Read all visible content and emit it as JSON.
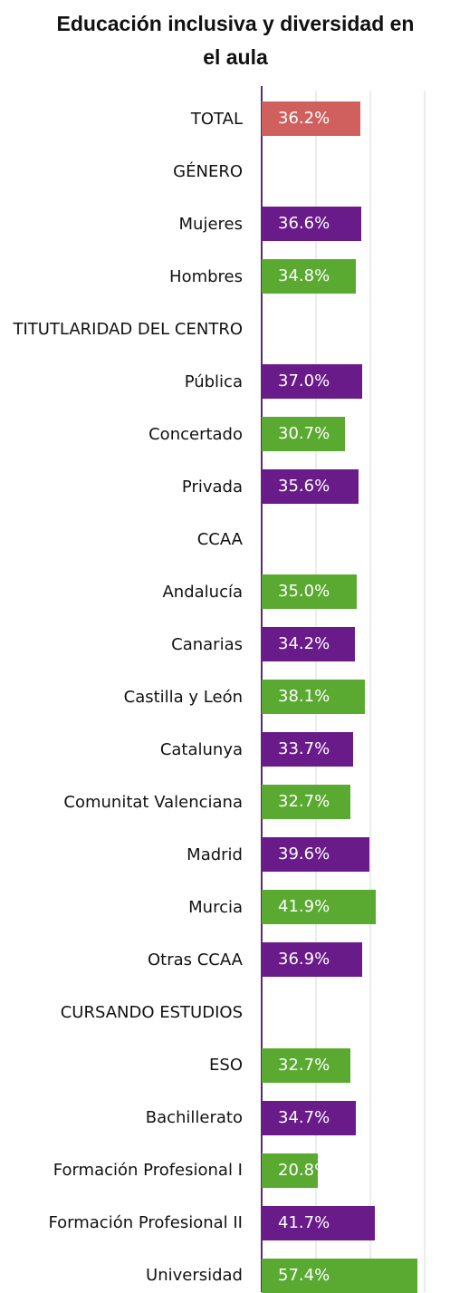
{
  "chart_data": {
    "type": "barh",
    "title": "Educación inclusiva y diversidad en el aula",
    "categories": [
      "TOTAL",
      "GÉNERO",
      "Mujeres",
      "Hombres",
      "TITUTLARIDAD DEL CENTRO",
      "Pública",
      "Concertado",
      "Privada",
      "CCAA",
      "Andalucía",
      "Canarias",
      "Castilla y León",
      "Catalunya",
      "Comunitat Valenciana",
      "Madrid",
      "Murcia",
      "Otras CCAA",
      "CURSANDO ESTUDIOS",
      "ESO",
      "Bachillerato",
      "Formación Profesional I",
      "Formación Profesional II",
      "Universidad"
    ],
    "values": [
      36.2,
      null,
      36.6,
      34.8,
      null,
      37.0,
      30.7,
      35.6,
      null,
      35.0,
      34.2,
      38.1,
      33.7,
      32.7,
      39.6,
      41.9,
      36.9,
      null,
      32.7,
      34.7,
      20.8,
      41.7,
      57.4
    ],
    "value_labels": [
      "36.2%",
      null,
      "36.6%",
      "34.8%",
      null,
      "37.0%",
      "30.7%",
      "35.6%",
      null,
      "35.0%",
      "34.2%",
      "38.1%",
      "33.7%",
      "32.7%",
      "39.6%",
      "41.9%",
      "36.9%",
      null,
      "32.7%",
      "34.7%",
      "20.8%",
      "41.7%",
      "57.4%"
    ],
    "colors": [
      "#d0605e",
      null,
      "#6a1b8a",
      "#5aaa32",
      null,
      "#6a1b8a",
      "#5aaa32",
      "#6a1b8a",
      null,
      "#5aaa32",
      "#6a1b8a",
      "#5aaa32",
      "#6a1b8a",
      "#5aaa32",
      "#6a1b8a",
      "#5aaa32",
      "#6a1b8a",
      null,
      "#5aaa32",
      "#6a1b8a",
      "#5aaa32",
      "#6a1b8a",
      "#5aaa32"
    ],
    "xlim": [
      0,
      60
    ],
    "xticks": [
      0,
      20,
      40,
      60
    ],
    "grid": true
  }
}
